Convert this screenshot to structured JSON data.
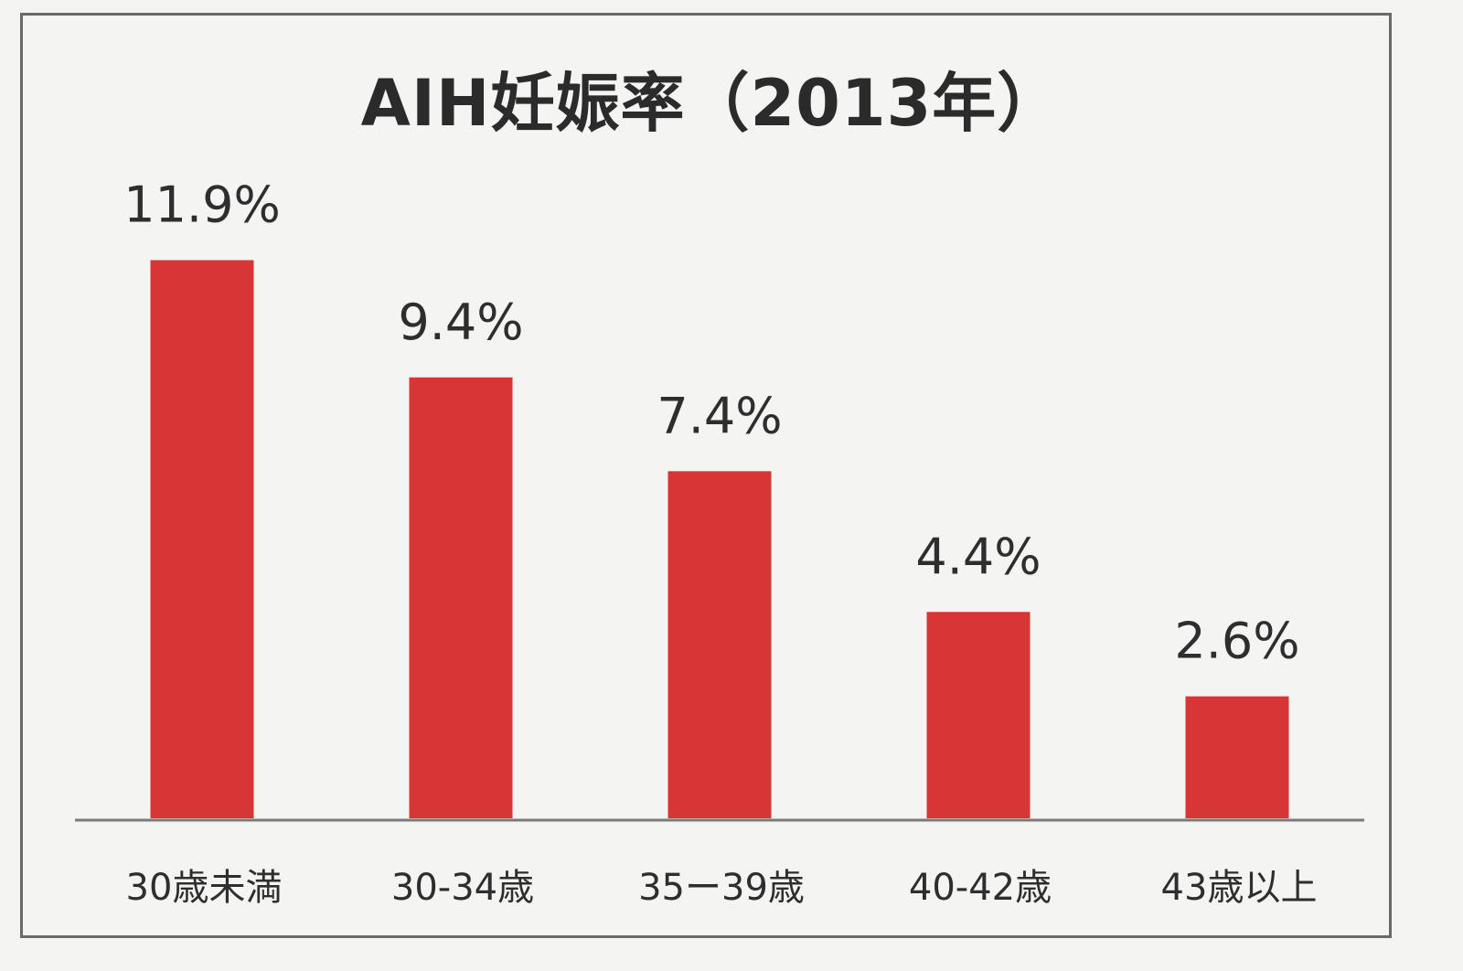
{
  "chart_data": {
    "type": "bar",
    "title": "AIH妊娠率（2013年）",
    "categories": [
      "30歳未満",
      "30-34歳",
      "35ー39歳",
      "40-42歳",
      "43歳以上"
    ],
    "values": [
      11.9,
      9.4,
      7.4,
      4.4,
      2.6
    ],
    "value_labels": [
      "11.9%",
      "9.4%",
      "7.4%",
      "4.4%",
      "2.6%"
    ],
    "xlabel": "",
    "ylabel": "",
    "ylim": [
      0,
      14
    ],
    "grid": false,
    "colors": {
      "bar": "#d83636"
    }
  }
}
